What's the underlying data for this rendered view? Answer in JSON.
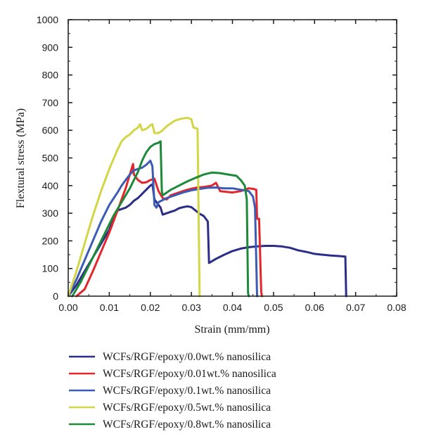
{
  "chart_data": {
    "type": "line",
    "xlabel": "Strain (mm/mm)",
    "ylabel": "Flextural stress (MPa)",
    "xlim": [
      0.0,
      0.08
    ],
    "ylim": [
      0,
      1000
    ],
    "x_ticks": [
      "0.00",
      "0.01",
      "0.02",
      "0.03",
      "0.04",
      "0.05",
      "0.06",
      "0.07",
      "0.08"
    ],
    "y_ticks": [
      "0",
      "100",
      "200",
      "300",
      "400",
      "500",
      "600",
      "700",
      "800",
      "900",
      "1000"
    ],
    "grid": false,
    "legend_position": "below",
    "series": [
      {
        "name": "WCFs/RGF/epoxy/0.0wt.% nanosilica",
        "color": "#2b2d87",
        "points": [
          [
            0.0,
            0
          ],
          [
            0.002,
            40
          ],
          [
            0.004,
            90
          ],
          [
            0.006,
            140
          ],
          [
            0.008,
            190
          ],
          [
            0.01,
            240
          ],
          [
            0.011,
            280
          ],
          [
            0.012,
            310
          ],
          [
            0.013,
            315
          ],
          [
            0.014,
            320
          ],
          [
            0.015,
            330
          ],
          [
            0.016,
            345
          ],
          [
            0.017,
            355
          ],
          [
            0.018,
            370
          ],
          [
            0.019,
            385
          ],
          [
            0.02,
            400
          ],
          [
            0.0205,
            405
          ],
          [
            0.021,
            350
          ],
          [
            0.022,
            330
          ],
          [
            0.0225,
            320
          ],
          [
            0.023,
            295
          ],
          [
            0.024,
            300
          ],
          [
            0.025,
            305
          ],
          [
            0.026,
            310
          ],
          [
            0.027,
            318
          ],
          [
            0.028,
            322
          ],
          [
            0.029,
            325
          ],
          [
            0.03,
            322
          ],
          [
            0.031,
            310
          ],
          [
            0.032,
            298
          ],
          [
            0.033,
            290
          ],
          [
            0.034,
            270
          ],
          [
            0.0343,
            120
          ],
          [
            0.036,
            135
          ],
          [
            0.038,
            150
          ],
          [
            0.04,
            163
          ],
          [
            0.042,
            172
          ],
          [
            0.044,
            177
          ],
          [
            0.046,
            180
          ],
          [
            0.048,
            182
          ],
          [
            0.05,
            182
          ],
          [
            0.052,
            180
          ],
          [
            0.054,
            175
          ],
          [
            0.056,
            166
          ],
          [
            0.058,
            160
          ],
          [
            0.06,
            153
          ],
          [
            0.062,
            150
          ],
          [
            0.064,
            147
          ],
          [
            0.066,
            145
          ],
          [
            0.0675,
            143
          ],
          [
            0.0677,
            0
          ]
        ]
      },
      {
        "name": "WCFs/RGF/epoxy/0.01wt.% nanosilica",
        "color": "#e3262b",
        "points": [
          [
            0.002,
            0
          ],
          [
            0.004,
            25
          ],
          [
            0.006,
            90
          ],
          [
            0.008,
            160
          ],
          [
            0.01,
            230
          ],
          [
            0.012,
            310
          ],
          [
            0.014,
            390
          ],
          [
            0.015,
            440
          ],
          [
            0.0158,
            478
          ],
          [
            0.016,
            440
          ],
          [
            0.017,
            420
          ],
          [
            0.018,
            410
          ],
          [
            0.019,
            412
          ],
          [
            0.02,
            420
          ],
          [
            0.021,
            425
          ],
          [
            0.022,
            380
          ],
          [
            0.023,
            355
          ],
          [
            0.024,
            350
          ],
          [
            0.025,
            365
          ],
          [
            0.027,
            375
          ],
          [
            0.029,
            385
          ],
          [
            0.031,
            392
          ],
          [
            0.033,
            395
          ],
          [
            0.035,
            400
          ],
          [
            0.036,
            410
          ],
          [
            0.037,
            380
          ],
          [
            0.038,
            378
          ],
          [
            0.04,
            375
          ],
          [
            0.042,
            380
          ],
          [
            0.044,
            390
          ],
          [
            0.045,
            388
          ],
          [
            0.0458,
            385
          ],
          [
            0.046,
            280
          ],
          [
            0.0465,
            280
          ],
          [
            0.047,
            15
          ],
          [
            0.0472,
            0
          ]
        ]
      },
      {
        "name": "WCFs/RGF/epoxy/0.1wt.% nanosilica",
        "color": "#3c5bb5",
        "points": [
          [
            0.0,
            0
          ],
          [
            0.002,
            60
          ],
          [
            0.004,
            130
          ],
          [
            0.006,
            200
          ],
          [
            0.008,
            270
          ],
          [
            0.01,
            330
          ],
          [
            0.012,
            375
          ],
          [
            0.013,
            400
          ],
          [
            0.014,
            420
          ],
          [
            0.015,
            440
          ],
          [
            0.016,
            455
          ],
          [
            0.017,
            460
          ],
          [
            0.018,
            465
          ],
          [
            0.019,
            475
          ],
          [
            0.02,
            490
          ],
          [
            0.0205,
            470
          ],
          [
            0.021,
            330
          ],
          [
            0.0215,
            320
          ],
          [
            0.022,
            340
          ],
          [
            0.024,
            355
          ],
          [
            0.026,
            365
          ],
          [
            0.028,
            375
          ],
          [
            0.03,
            383
          ],
          [
            0.032,
            388
          ],
          [
            0.034,
            392
          ],
          [
            0.036,
            393
          ],
          [
            0.038,
            390
          ],
          [
            0.04,
            390
          ],
          [
            0.042,
            385
          ],
          [
            0.044,
            380
          ],
          [
            0.045,
            360
          ],
          [
            0.0455,
            320
          ],
          [
            0.046,
            0
          ]
        ]
      },
      {
        "name": "WCFs/RGF/epoxy/0.5wt.% nanosilica",
        "color": "#d2d644",
        "points": [
          [
            0.0,
            0
          ],
          [
            0.002,
            90
          ],
          [
            0.004,
            190
          ],
          [
            0.006,
            290
          ],
          [
            0.008,
            380
          ],
          [
            0.01,
            460
          ],
          [
            0.012,
            530
          ],
          [
            0.013,
            560
          ],
          [
            0.014,
            575
          ],
          [
            0.015,
            585
          ],
          [
            0.016,
            600
          ],
          [
            0.017,
            610
          ],
          [
            0.0175,
            622
          ],
          [
            0.018,
            600
          ],
          [
            0.019,
            605
          ],
          [
            0.02,
            618
          ],
          [
            0.0205,
            622
          ],
          [
            0.021,
            590
          ],
          [
            0.022,
            590
          ],
          [
            0.023,
            600
          ],
          [
            0.024,
            615
          ],
          [
            0.025,
            625
          ],
          [
            0.026,
            635
          ],
          [
            0.027,
            640
          ],
          [
            0.028,
            643
          ],
          [
            0.029,
            645
          ],
          [
            0.03,
            640
          ],
          [
            0.0305,
            610
          ],
          [
            0.031,
            608
          ],
          [
            0.0315,
            605
          ],
          [
            0.032,
            0
          ]
        ]
      },
      {
        "name": "WCFs/RGF/epoxy/0.8wt.% nanosilica",
        "color": "#1d8a3a",
        "points": [
          [
            0.001,
            0
          ],
          [
            0.003,
            50
          ],
          [
            0.005,
            110
          ],
          [
            0.007,
            170
          ],
          [
            0.009,
            230
          ],
          [
            0.011,
            290
          ],
          [
            0.013,
            340
          ],
          [
            0.015,
            390
          ],
          [
            0.016,
            420
          ],
          [
            0.017,
            450
          ],
          [
            0.018,
            490
          ],
          [
            0.019,
            520
          ],
          [
            0.02,
            540
          ],
          [
            0.021,
            550
          ],
          [
            0.022,
            555
          ],
          [
            0.0225,
            560
          ],
          [
            0.0228,
            380
          ],
          [
            0.023,
            365
          ],
          [
            0.025,
            385
          ],
          [
            0.027,
            400
          ],
          [
            0.029,
            415
          ],
          [
            0.031,
            428
          ],
          [
            0.033,
            440
          ],
          [
            0.035,
            447
          ],
          [
            0.037,
            445
          ],
          [
            0.039,
            440
          ],
          [
            0.041,
            435
          ],
          [
            0.042,
            420
          ],
          [
            0.043,
            400
          ],
          [
            0.0435,
            350
          ],
          [
            0.0438,
            10
          ],
          [
            0.044,
            0
          ]
        ]
      }
    ]
  }
}
